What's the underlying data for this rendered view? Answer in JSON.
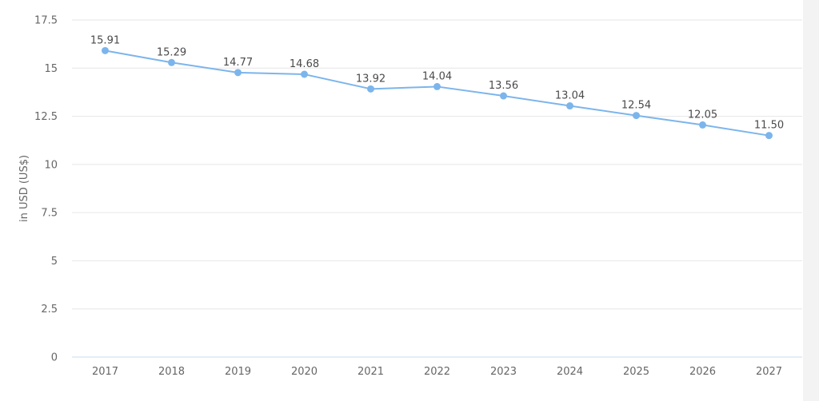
{
  "chart_data": {
    "type": "line",
    "title": "",
    "xlabel": "",
    "ylabel": "in USD (US$)",
    "categories": [
      "2017",
      "2018",
      "2019",
      "2020",
      "2021",
      "2022",
      "2023",
      "2024",
      "2025",
      "2026",
      "2027"
    ],
    "series": [
      {
        "values": [
          15.91,
          15.29,
          14.77,
          14.68,
          13.92,
          14.04,
          13.56,
          13.04,
          12.54,
          12.05,
          11.5
        ],
        "labels": [
          "15.91",
          "15.29",
          "14.77",
          "14.68",
          "13.92",
          "14.04",
          "13.56",
          "13.04",
          "12.54",
          "12.05",
          "11.50"
        ],
        "color": "#7cb5ec"
      }
    ],
    "yticks": [
      0,
      2.5,
      5,
      7.5,
      10,
      12.5,
      15,
      17.5
    ],
    "ytick_labels": [
      "0",
      "2.5",
      "5",
      "7.5",
      "10",
      "12.5",
      "15",
      "17.5"
    ],
    "ylim": [
      0,
      17.5
    ],
    "grid": true,
    "legend": "none",
    "colors": {
      "grid": "#e6e6e6",
      "axis_line": "#c6dcf2",
      "text": "#666666",
      "label_text": "#4a4a4a"
    }
  }
}
